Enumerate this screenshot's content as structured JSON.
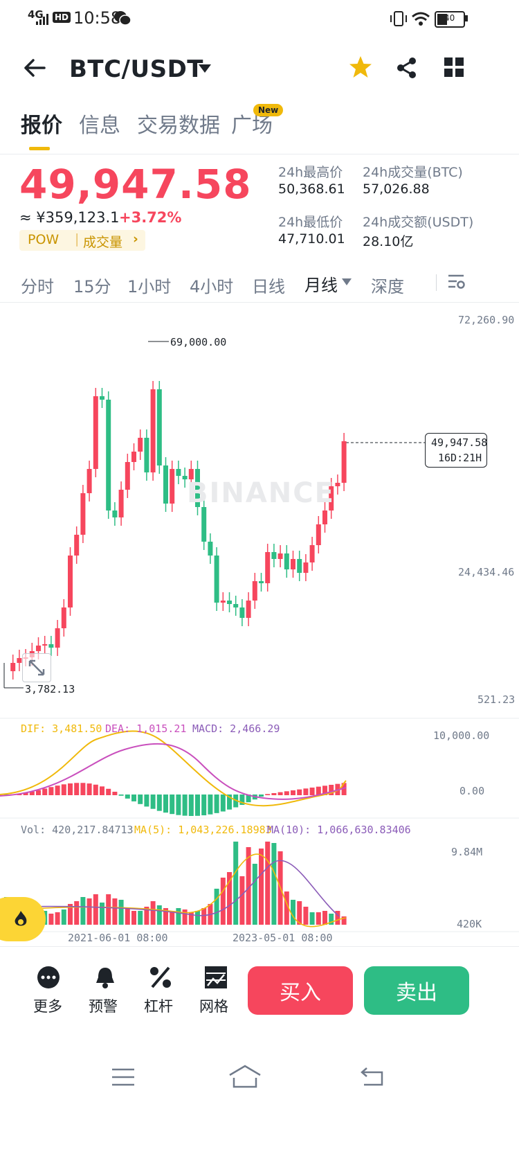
{
  "status_bar": {
    "network": "4G",
    "hd": "HD",
    "time": "10:58",
    "battery": "40"
  },
  "header": {
    "title": "BTC/USDT"
  },
  "tabs": [
    {
      "label": "报价"
    },
    {
      "label": "信息"
    },
    {
      "label": "交易数据"
    },
    {
      "label": "广场"
    }
  ],
  "new_badge": "New",
  "price": {
    "last": "49,947.58",
    "cny": "≈ ¥359,123.1",
    "change": "+3.72%",
    "tag_pow": "POW",
    "tag_volume": "成交量",
    "high_label": "24h最高价",
    "high": "50,368.61",
    "vol_btc_label": "24h成交量(BTC)",
    "vol_btc": "57,026.88",
    "low_label": "24h最低价",
    "low": "47,710.01",
    "vol_usdt_label": "24h成交额(USDT)",
    "vol_usdt": "28.10亿"
  },
  "intervals": [
    {
      "label": "分时"
    },
    {
      "label": "15分"
    },
    {
      "label": "1小时"
    },
    {
      "label": "4小时"
    },
    {
      "label": "日线"
    },
    {
      "label": "月线"
    },
    {
      "label": "深度"
    }
  ],
  "chart": {
    "watermark": "BINANCE",
    "axis_top": "72,260.90",
    "axis_mid": "24,434.46",
    "axis_bottom": "521.23",
    "max_label": "69,000.00",
    "min_label": "3,782.13",
    "last_price": "49,947.58",
    "countdown": "16D:21H",
    "macd_dif": "DIF: 3,481.50",
    "macd_dea": "DEA: 1,015.21",
    "macd_val": "MACD: 2,466.29",
    "macd_axis_top": "10,000.00",
    "macd_axis_zero": "0.00",
    "vol_label": "Vol: 420,217.84713",
    "vol_ma5": "MA(5): 1,043,226.18983",
    "vol_ma10": "MA(10): 1,066,630.83406",
    "vol_axis_top": "9.84M",
    "vol_axis_low": "420K",
    "date_1": "2021-06-01 08:00",
    "date_2": "2023-05-01 08:00",
    "colors": {
      "up": "#f6465d",
      "down": "#2ebd85",
      "dif": "#f0b90b",
      "dea": "#c94fbd"
    }
  },
  "chart_data": {
    "type": "candlestick",
    "title": "",
    "xlabel": "",
    "ylabel": "",
    "ylim": [
      521.23,
      72260.9
    ],
    "x_ticks": [
      "2021-06-01 08:00",
      "2023-05-01 08:00"
    ],
    "y_ticks": [
      "72,260.90",
      "24,434.46",
      "521.23"
    ],
    "highest_marked": "69,000.00",
    "lowest_marked": "3,782.13",
    "last": "49,947.58"
  },
  "bottom_bar": {
    "more": "更多",
    "alert": "预警",
    "leverage": "杠杆",
    "grid": "网格",
    "buy": "买入",
    "sell": "卖出"
  }
}
